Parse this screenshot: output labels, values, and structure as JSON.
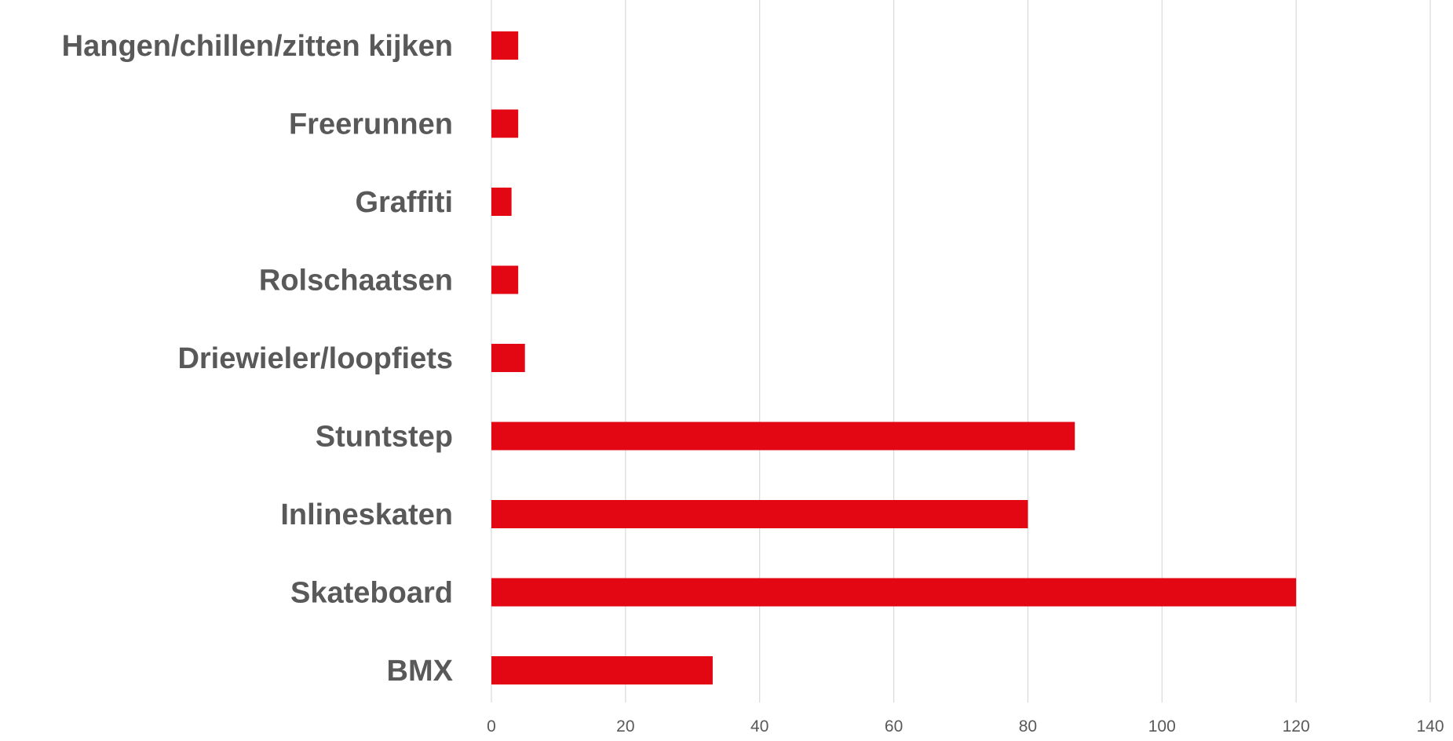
{
  "chart_data": {
    "type": "bar",
    "orientation": "horizontal",
    "categories": [
      "Hangen/chillen/zitten kijken",
      "Freerunnen",
      "Graffiti",
      "Rolschaatsen",
      "Driewieler/loopfiets",
      "Stuntstep",
      "Inlineskaten",
      "Skateboard",
      "BMX"
    ],
    "values": [
      4,
      4,
      3,
      4,
      5,
      87,
      80,
      120,
      33
    ],
    "xlim": [
      0,
      140
    ],
    "xticks": [
      0,
      20,
      40,
      60,
      80,
      100,
      120,
      140
    ],
    "title": "",
    "xlabel": "",
    "ylabel": "",
    "grid": "vertical",
    "legend": "none",
    "bar_color": "#e30613"
  }
}
